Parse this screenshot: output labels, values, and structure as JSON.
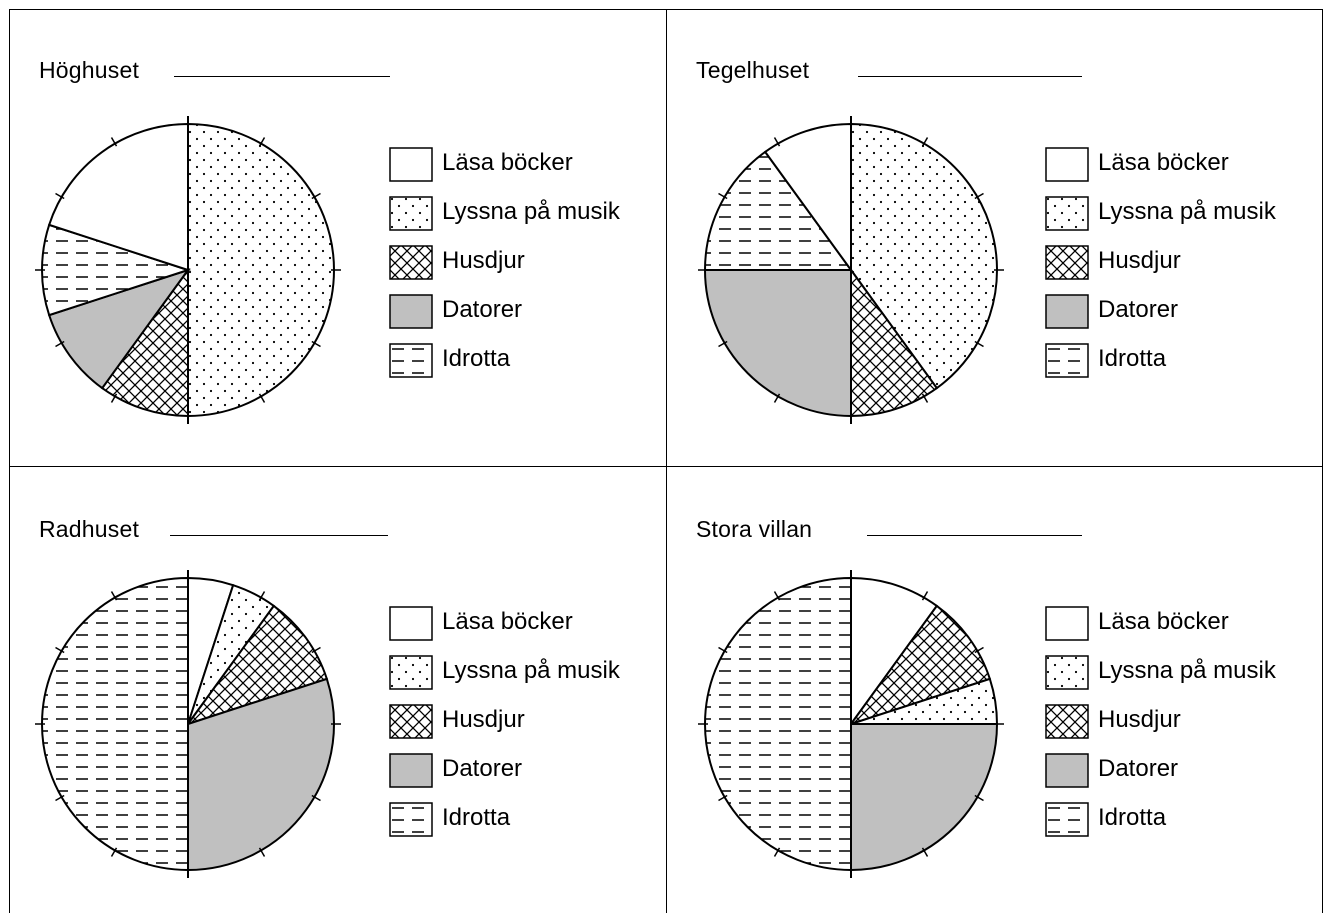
{
  "legend_labels": [
    "Läsa böcker",
    "Lyssna på musik",
    "Husdjur",
    "Datorer",
    "Idrotta"
  ],
  "chart_data": [
    {
      "type": "pie",
      "title": "Höghuset",
      "categories": [
        "Lyssna på musik",
        "Husdjur",
        "Datorer",
        "Idrotta",
        "Läsa böcker"
      ],
      "values": [
        50,
        10,
        10,
        10,
        20
      ]
    },
    {
      "type": "pie",
      "title": "Tegelhuset",
      "categories": [
        "Lyssna på musik",
        "Husdjur",
        "Datorer",
        "Idrotta",
        "Läsa böcker"
      ],
      "values": [
        40,
        10,
        25,
        15,
        10
      ]
    },
    {
      "type": "pie",
      "title": "Radhuset",
      "categories": [
        "Läsa böcker",
        "Lyssna på musik",
        "Husdjur",
        "Datorer",
        "Idrotta"
      ],
      "values": [
        5,
        5,
        10,
        30,
        50
      ]
    },
    {
      "type": "pie",
      "title": "Stora villan",
      "categories": [
        "Läsa böcker",
        "Husdjur",
        "Lyssna på musik",
        "Datorer",
        "Idrotta"
      ],
      "values": [
        10,
        10,
        5,
        25,
        50
      ]
    }
  ]
}
